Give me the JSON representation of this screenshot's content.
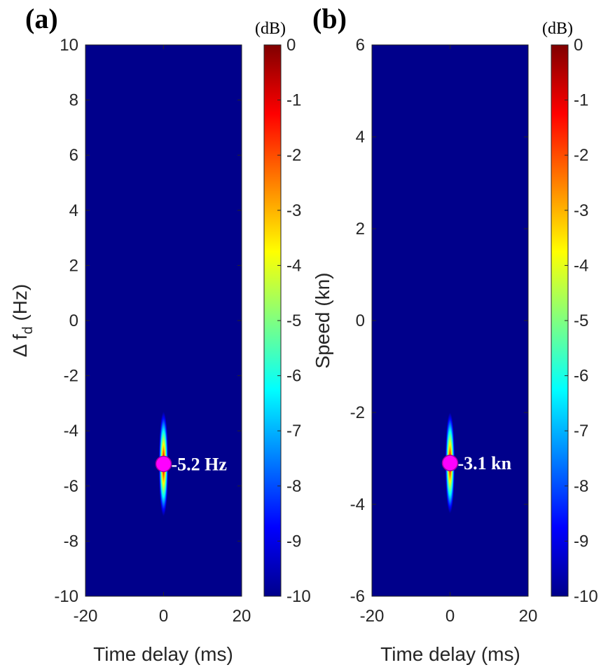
{
  "chart_data": [
    {
      "type": "heatmap",
      "panel_label": "(a)",
      "xlabel": "Time delay (ms)",
      "ylabel_prefix": "Δ f",
      "ylabel_sub": "d",
      "ylabel_suffix": " (Hz)",
      "xlim": [
        -20,
        20
      ],
      "ylim": [
        -10,
        10
      ],
      "xticks": [
        -20,
        0,
        20
      ],
      "xtick_labels": [
        "-20",
        "0",
        "20"
      ],
      "yticks": [
        10,
        8,
        6,
        4,
        2,
        0,
        -2,
        -4,
        -6,
        -8,
        -10
      ],
      "ytick_labels": [
        "10",
        "8",
        "6",
        "4",
        "2",
        "0",
        "-2",
        "-4",
        "-6",
        "-8",
        "-10"
      ],
      "peak": {
        "x": 0,
        "y": -5.2,
        "x_halfwidth": 1.2,
        "y_halfwidth": 1.9
      },
      "marker": {
        "x": 0,
        "y": -5.2,
        "label": "-5.2 Hz"
      },
      "colorbar": {
        "unit": "(dB)",
        "range": [
          -10,
          0
        ],
        "ticks": [
          0,
          -1,
          -2,
          -3,
          -4,
          -5,
          -6,
          -7,
          -8,
          -9,
          -10
        ],
        "tick_labels": [
          "0",
          "-1",
          "-2",
          "-3",
          "-4",
          "-5",
          "-6",
          "-7",
          "-8",
          "-9",
          "-10"
        ],
        "colormap": "jet"
      }
    },
    {
      "type": "heatmap",
      "panel_label": "(b)",
      "xlabel": "Time delay (ms)",
      "ylabel": "Speed (kn)",
      "xlim": [
        -20,
        20
      ],
      "ylim": [
        -6,
        6
      ],
      "xticks": [
        -20,
        0,
        20
      ],
      "xtick_labels": [
        "-20",
        "0",
        "20"
      ],
      "yticks": [
        6,
        4,
        2,
        0,
        -2,
        -4,
        -6
      ],
      "ytick_labels": [
        "6",
        "4",
        "2",
        "0",
        "-2",
        "-4",
        "-6"
      ],
      "peak": {
        "x": 0,
        "y": -3.1,
        "x_halfwidth": 1.2,
        "y_halfwidth": 1.1
      },
      "marker": {
        "x": 0,
        "y": -3.1,
        "label": "-3.1 kn"
      },
      "colorbar": {
        "unit": "(dB)",
        "range": [
          -10,
          0
        ],
        "ticks": [
          0,
          -1,
          -2,
          -3,
          -4,
          -5,
          -6,
          -7,
          -8,
          -9,
          -10
        ],
        "tick_labels": [
          "0",
          "-1",
          "-2",
          "-3",
          "-4",
          "-5",
          "-6",
          "-7",
          "-8",
          "-9",
          "-10"
        ],
        "colormap": "jet"
      }
    }
  ],
  "colors": {
    "background_dark": "#00008b",
    "marker_fill": "#ff00ff",
    "marker_stroke": "#a000a0",
    "annotation_text": "#ffffff",
    "jet_stops": [
      "#00008b",
      "#0000ff",
      "#0080ff",
      "#00ffff",
      "#80ff80",
      "#ffff00",
      "#ff8000",
      "#ff0000",
      "#800000"
    ]
  }
}
